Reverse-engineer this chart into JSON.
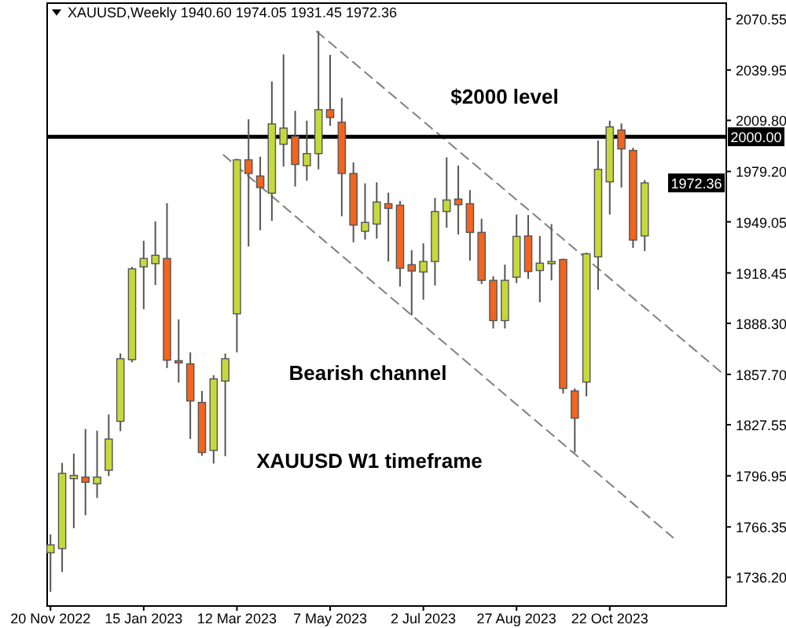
{
  "chart_data": {
    "type": "candlestick",
    "title": "XAUUSD,Weekly  1940.60 1974.05 1931.45 1972.36",
    "x": [
      "2022-11-20",
      "2022-11-27",
      "2022-12-04",
      "2022-12-11",
      "2022-12-18",
      "2022-12-25",
      "2023-01-01",
      "2023-01-08",
      "2023-01-15",
      "2023-01-22",
      "2023-01-29",
      "2023-02-05",
      "2023-02-12",
      "2023-02-19",
      "2023-02-26",
      "2023-03-05",
      "2023-03-12",
      "2023-03-19",
      "2023-03-26",
      "2023-04-02",
      "2023-04-09",
      "2023-04-16",
      "2023-04-23",
      "2023-04-30",
      "2023-05-07",
      "2023-05-14",
      "2023-05-21",
      "2023-05-28",
      "2023-06-04",
      "2023-06-11",
      "2023-06-18",
      "2023-06-25",
      "2023-07-02",
      "2023-07-09",
      "2023-07-16",
      "2023-07-23",
      "2023-07-30",
      "2023-08-06",
      "2023-08-13",
      "2023-08-20",
      "2023-08-27",
      "2023-09-03",
      "2023-09-10",
      "2023-09-17",
      "2023-09-24",
      "2023-10-01",
      "2023-10-08",
      "2023-10-15",
      "2023-10-22",
      "2023-10-29",
      "2023-11-05",
      "2023-11-12"
    ],
    "ohlc": [
      [
        1750.9,
        1761.9,
        1727.5,
        1755.6
      ],
      [
        1753.4,
        1804.7,
        1739.4,
        1798.4
      ],
      [
        1795.3,
        1810.3,
        1765.6,
        1797.2
      ],
      [
        1796.2,
        1825.0,
        1773.4,
        1793.1
      ],
      [
        1792.2,
        1824.0,
        1783.7,
        1796.2
      ],
      [
        1800.3,
        1833.7,
        1796.8,
        1819.0
      ],
      [
        1829.6,
        1870.2,
        1823.7,
        1867.1
      ],
      [
        1866.5,
        1922.1,
        1865.0,
        1920.9
      ],
      [
        1922.1,
        1937.7,
        1896.8,
        1927.1
      ],
      [
        1924.0,
        1949.3,
        1911.2,
        1929.0
      ],
      [
        1927.1,
        1960.2,
        1861.5,
        1866.2
      ],
      [
        1865.9,
        1890.6,
        1852.8,
        1864.6
      ],
      [
        1864.0,
        1870.9,
        1819.0,
        1841.8
      ],
      [
        1840.9,
        1847.8,
        1809.0,
        1810.9
      ],
      [
        1812.2,
        1857.2,
        1804.3,
        1855.0
      ],
      [
        1853.7,
        1870.2,
        1808.7,
        1867.1
      ],
      [
        1894.0,
        1986.8,
        1870.9,
        1986.2
      ],
      [
        1986.2,
        2010.5,
        1934.3,
        1978.0
      ],
      [
        1976.5,
        1988.0,
        1944.0,
        1969.6
      ],
      [
        1966.2,
        2033.1,
        1949.6,
        2007.7
      ],
      [
        1995.5,
        2049.3,
        1982.1,
        2005.2
      ],
      [
        2000.2,
        2015.5,
        1970.2,
        1983.4
      ],
      [
        1982.7,
        2009.6,
        1973.7,
        1989.9
      ],
      [
        1989.9,
        2063.3,
        1980.5,
        2016.2
      ],
      [
        2016.2,
        2049.0,
        2006.5,
        2011.5
      ],
      [
        2008.7,
        2023.3,
        1952.4,
        1978.0
      ],
      [
        1978.0,
        1984.6,
        1936.8,
        1947.1
      ],
      [
        1943.4,
        1972.1,
        1938.4,
        1948.7
      ],
      [
        1947.7,
        1972.7,
        1939.0,
        1960.9
      ],
      [
        1959.9,
        1966.5,
        1925.3,
        1957.1
      ],
      [
        1959.0,
        1961.5,
        1910.3,
        1921.2
      ],
      [
        1923.4,
        1932.1,
        1893.1,
        1919.6
      ],
      [
        1919.0,
        1936.2,
        1902.4,
        1925.3
      ],
      [
        1925.3,
        1963.4,
        1910.9,
        1955.2
      ],
      [
        1955.2,
        1987.7,
        1945.5,
        1962.1
      ],
      [
        1962.7,
        1982.7,
        1941.5,
        1959.3
      ],
      [
        1959.9,
        1968.0,
        1925.9,
        1942.7
      ],
      [
        1942.7,
        1950.9,
        1911.8,
        1914.0
      ],
      [
        1914.0,
        1916.5,
        1885.2,
        1889.9
      ],
      [
        1889.9,
        1923.4,
        1885.2,
        1914.0
      ],
      [
        1915.9,
        1953.4,
        1912.4,
        1940.3
      ],
      [
        1940.6,
        1953.1,
        1914.9,
        1919.3
      ],
      [
        1919.9,
        1940.6,
        1900.9,
        1924.3
      ],
      [
        1924.0,
        1947.7,
        1914.0,
        1925.3
      ],
      [
        1926.5,
        1927.0,
        1846.2,
        1849.3
      ],
      [
        1847.8,
        1849.3,
        1810.9,
        1831.5
      ],
      [
        1853.1,
        1930.6,
        1844.6,
        1929.9
      ],
      [
        1928.1,
        1997.7,
        1908.4,
        1980.5
      ],
      [
        1973.0,
        2009.6,
        1953.4,
        2005.9
      ],
      [
        2004.0,
        2008.0,
        1969.6,
        1992.7
      ],
      [
        1991.8,
        1993.4,
        1933.4,
        1938.1
      ],
      [
        1940.6,
        1974.05,
        1931.45,
        1972.36
      ]
    ],
    "colors": [
      "#c6d93a",
      "#c6d93a",
      "#c6d93a",
      "#f4641e",
      "#c6d93a",
      "#c6d93a",
      "#c6d93a",
      "#c6d93a",
      "#c6d93a",
      "#c6d93a",
      "#f4641e",
      "#f4641e",
      "#f4641e",
      "#f4641e",
      "#c6d93a",
      "#c6d93a",
      "#c6d93a",
      "#f4641e",
      "#f4641e",
      "#c6d93a",
      "#c6d93a",
      "#f4641e",
      "#c6d93a",
      "#c6d93a",
      "#f4641e",
      "#f4641e",
      "#f4641e",
      "#c6d93a",
      "#c6d93a",
      "#f4641e",
      "#f4641e",
      "#f4641e",
      "#c6d93a",
      "#c6d93a",
      "#c6d93a",
      "#f4641e",
      "#f4641e",
      "#f4641e",
      "#f4641e",
      "#c6d93a",
      "#c6d93a",
      "#f4641e",
      "#c6d93a",
      "#c6d93a",
      "#f4641e",
      "#f4641e",
      "#c6d93a",
      "#c6d93a",
      "#c6d93a",
      "#f4641e",
      "#f4641e",
      "#c6d93a"
    ],
    "series": [
      {
        "type": "line",
        "color": "#808080",
        "line_style": "dashed",
        "x": [
          "2023-04-29",
          "2023-12-28"
        ],
        "values": [
          2063,
          1859
        ]
      },
      {
        "type": "line",
        "color": "#808080",
        "line_style": "dashed",
        "x": [
          "2023-03-04",
          "2023-11-29"
        ],
        "values": [
          1989,
          1760
        ]
      }
    ],
    "xlim": [
      "2022-11-18",
      "2023-12-31"
    ],
    "xticks": [
      {
        "value": "2022-11-20",
        "label": "20 Nov 2022"
      },
      {
        "value": "2023-01-15",
        "label": "15 Jan 2023"
      },
      {
        "value": "2023-03-12",
        "label": "12 Mar 2023"
      },
      {
        "value": "2023-05-07",
        "label": "7 May 2023"
      },
      {
        "value": "2023-07-02",
        "label": "2 Jul 2023"
      },
      {
        "value": "2023-08-27",
        "label": "27 Aug 2023"
      },
      {
        "value": "2023-10-22",
        "label": "22 Oct 2023"
      }
    ],
    "ylim": [
      1719,
      2080
    ],
    "yticks": [
      2070.55,
      2039.95,
      {
        "value": 2009.8,
        "label": "2009.80"
      },
      {
        "value": 1979.2,
        "label": "1979.20"
      },
      1949.05,
      1918.45,
      {
        "value": 1888.3,
        "label": "1888.30"
      },
      {
        "value": 1857.7,
        "label": "1857.70"
      },
      1827.55,
      1796.95,
      1766.35,
      {
        "value": 1736.2,
        "label": "1736.20"
      }
    ],
    "ref_lines": [
      {
        "axis": "y",
        "value": 2000,
        "label": "2000.00",
        "color": "#000000"
      }
    ],
    "annotations": [
      "$2000 level",
      "Bearish channel",
      "XAUUSD W1 timeframe",
      {
        "text": "1972.36",
        "y": 1972.36
      }
    ]
  }
}
